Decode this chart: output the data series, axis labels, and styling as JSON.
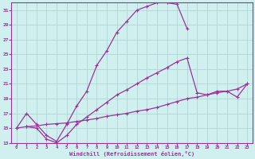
{
  "xlabel": "Windchill (Refroidissement éolien,°C)",
  "bg_color": "#d0efef",
  "grid_color": "#b0d5d5",
  "line_color": "#993399",
  "xlim": [
    -0.5,
    23.5
  ],
  "ylim": [
    13,
    32
  ],
  "yticks": [
    13,
    15,
    17,
    19,
    21,
    23,
    25,
    27,
    29,
    31
  ],
  "xticks": [
    0,
    1,
    2,
    3,
    4,
    5,
    6,
    7,
    8,
    9,
    10,
    11,
    12,
    13,
    14,
    15,
    16,
    17,
    18,
    19,
    20,
    21,
    22,
    23
  ],
  "curve1_x": [
    0,
    1,
    2,
    3,
    4,
    5,
    6,
    7,
    8,
    9,
    10,
    11,
    12,
    13,
    14,
    15,
    16,
    17
  ],
  "curve1_y": [
    15.0,
    17.0,
    15.5,
    14.0,
    13.2,
    15.5,
    18.0,
    20.0,
    23.5,
    25.5,
    28.0,
    29.5,
    31.0,
    31.5,
    32.0,
    32.0,
    31.8,
    28.5
  ],
  "curve2_x": [
    1,
    2,
    3,
    4,
    5,
    6,
    7,
    8,
    9,
    10,
    11,
    12,
    13,
    14,
    15,
    16,
    17,
    18,
    19,
    20,
    21,
    22,
    23
  ],
  "curve2_y": [
    15.2,
    15.0,
    13.5,
    13.0,
    14.0,
    15.5,
    16.5,
    17.5,
    18.5,
    19.5,
    20.2,
    21.0,
    21.8,
    22.5,
    23.2,
    24.0,
    24.5,
    19.8,
    19.5,
    20.0,
    20.0,
    19.2,
    21.0
  ],
  "curve3_x": [
    0,
    1,
    2,
    3,
    4,
    5,
    6,
    7,
    8,
    9,
    10,
    11,
    12,
    13,
    14,
    15,
    16,
    17,
    18,
    19,
    20,
    21,
    22,
    23
  ],
  "curve3_y": [
    15.0,
    15.2,
    15.3,
    15.5,
    15.6,
    15.7,
    15.9,
    16.1,
    16.3,
    16.6,
    16.8,
    17.0,
    17.3,
    17.5,
    17.8,
    18.2,
    18.6,
    19.0,
    19.2,
    19.5,
    19.8,
    20.0,
    20.3,
    21.0
  ]
}
